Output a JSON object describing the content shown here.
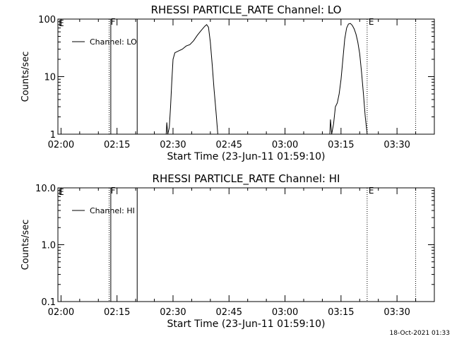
{
  "chart_data": [
    {
      "type": "line",
      "title": "RHESSI PARTICLE_RATE Channel: LO",
      "xlabel": "Start Time (23-Jun-11 01:59:10)",
      "ylabel": "Counts/sec",
      "yscale": "log",
      "ylim": [
        1,
        100
      ],
      "yticks": [
        1,
        10,
        100
      ],
      "yticklabels": [
        "1",
        "10",
        "100"
      ],
      "xlim": [
        "01:59:10",
        "03:40:00"
      ],
      "xticks": [
        "02:00",
        "02:15",
        "02:30",
        "02:45",
        "03:00",
        "03:15",
        "03:30"
      ],
      "legend": {
        "label": "Channel: LO",
        "placement": "top-left"
      },
      "markers": [
        {
          "time": "02:12:54",
          "label": "F",
          "style": "dotted"
        },
        {
          "time": "02:13:20",
          "label": "",
          "style": "solid"
        },
        {
          "time": "02:20:24",
          "label": "",
          "style": "solid"
        },
        {
          "time": "03:22:00",
          "label": "E",
          "style": "dotted"
        },
        {
          "time": "03:35:00",
          "label": "",
          "style": "dotted"
        }
      ],
      "series": [
        {
          "name": "Channel: LO",
          "segments": [
            [
              [
                "02:28:10",
                1.0
              ],
              [
                "02:28:20",
                1.6
              ],
              [
                "02:28:35",
                1.0
              ],
              [
                "02:29:00",
                1.3
              ],
              [
                "02:29:20",
                3.0
              ],
              [
                "02:29:40",
                8.0
              ],
              [
                "02:30:00",
                20.0
              ],
              [
                "02:30:30",
                26.0
              ],
              [
                "02:31:30",
                28.0
              ],
              [
                "02:32:30",
                30.0
              ],
              [
                "02:33:30",
                34.0
              ],
              [
                "02:34:30",
                36.0
              ],
              [
                "02:35:30",
                42.0
              ],
              [
                "02:36:30",
                52.0
              ],
              [
                "02:37:30",
                63.0
              ],
              [
                "02:38:30",
                75.0
              ],
              [
                "02:39:00",
                80.0
              ],
              [
                "02:39:30",
                72.0
              ],
              [
                "02:40:00",
                40.0
              ],
              [
                "02:40:30",
                16.0
              ],
              [
                "02:41:00",
                6.0
              ],
              [
                "02:41:30",
                2.5
              ],
              [
                "02:42:00",
                1.0
              ]
            ],
            [
              [
                "03:12:00",
                1.0
              ],
              [
                "03:12:10",
                1.8
              ],
              [
                "03:12:30",
                1.0
              ],
              [
                "03:13:00",
                1.5
              ],
              [
                "03:13:30",
                3.0
              ],
              [
                "03:14:00",
                3.5
              ],
              [
                "03:14:30",
                5.0
              ],
              [
                "03:15:00",
                9.0
              ],
              [
                "03:15:30",
                20.0
              ],
              [
                "03:16:00",
                45.0
              ],
              [
                "03:16:30",
                70.0
              ],
              [
                "03:17:00",
                82.0
              ],
              [
                "03:17:30",
                84.0
              ],
              [
                "03:18:00",
                78.0
              ],
              [
                "03:18:30",
                68.0
              ],
              [
                "03:19:00",
                55.0
              ],
              [
                "03:19:30",
                40.0
              ],
              [
                "03:20:00",
                25.0
              ],
              [
                "03:20:30",
                12.0
              ],
              [
                "03:21:00",
                5.0
              ],
              [
                "03:21:30",
                2.0
              ],
              [
                "03:22:00",
                1.0
              ]
            ]
          ]
        }
      ]
    },
    {
      "type": "line",
      "title": "RHESSI PARTICLE_RATE Channel: HI",
      "xlabel": "Start Time (23-Jun-11 01:59:10)",
      "ylabel": "Counts/sec",
      "yscale": "log",
      "ylim": [
        0.1,
        10
      ],
      "yticks": [
        0.1,
        1,
        10
      ],
      "yticklabels": [
        "0.1",
        "1.0",
        "10.0"
      ],
      "xlim": [
        "01:59:10",
        "03:40:00"
      ],
      "xticks": [
        "02:00",
        "02:15",
        "02:30",
        "02:45",
        "03:00",
        "03:15",
        "03:30"
      ],
      "legend": {
        "label": "Channel: HI",
        "placement": "top-left"
      },
      "markers": [
        {
          "time": "02:12:54",
          "label": "F",
          "style": "dotted"
        },
        {
          "time": "02:13:20",
          "label": "",
          "style": "solid"
        },
        {
          "time": "02:20:24",
          "label": "",
          "style": "solid"
        },
        {
          "time": "03:22:00",
          "label": "E",
          "style": "dotted"
        },
        {
          "time": "03:35:00",
          "label": "",
          "style": "dotted"
        }
      ],
      "series": [
        {
          "name": "Channel: HI",
          "segments": []
        }
      ]
    }
  ],
  "corner_label": "E",
  "footer": {
    "timestamp": "18-Oct-2021 01:33"
  }
}
